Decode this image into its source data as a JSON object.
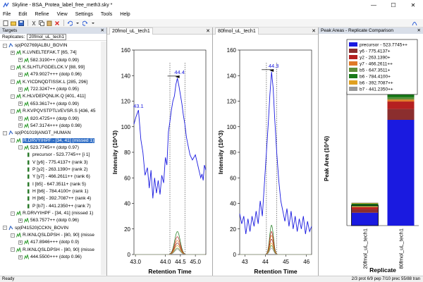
{
  "window": {
    "title": "Skyline - BSA_Protea_label_free_meth3.sky *",
    "minimize": "—",
    "maximize": "☐",
    "close": "✕"
  },
  "menu": [
    "File",
    "Edit",
    "Refine",
    "View",
    "Settings",
    "Tools",
    "Help"
  ],
  "targets": {
    "title": "Targets",
    "replicates_label": "Replicates:",
    "replicate_value": "20fmol_uL_tech1",
    "tree": [
      {
        "level": 0,
        "text": "sp|P02769|ALBU_BOVIN",
        "exp": "-",
        "kind": "protein"
      },
      {
        "level": 1,
        "text": "K.LVNELTEFAK.T [65, 74]",
        "exp": "+",
        "kind": "peptide"
      },
      {
        "level": 2,
        "text": "582.3190++ (dotp 0.99)",
        "exp": "+",
        "kind": "precursor"
      },
      {
        "level": 1,
        "text": "K.SLHTLFGDELCK.V [88, 99]",
        "exp": "-",
        "kind": "peptide"
      },
      {
        "level": 2,
        "text": "479.9027+++ (dotp 0.96)",
        "exp": "+",
        "kind": "precursor"
      },
      {
        "level": 1,
        "text": "K.YICDNQDTISSK.L [285, 296]",
        "exp": "-",
        "kind": "peptide"
      },
      {
        "level": 2,
        "text": "722.3247++ (dotp 0.95)",
        "exp": "+",
        "kind": "precursor"
      },
      {
        "level": 1,
        "text": "K.HLVDEPQNLIK.Q [401, 411]",
        "exp": "-",
        "kind": "peptide"
      },
      {
        "level": 2,
        "text": "653.3617++ (dotp 0.99)",
        "exp": "+",
        "kind": "precursor"
      },
      {
        "level": 1,
        "text": "R.KVPQVSTPTLVEVSR.S [436, 45",
        "exp": "-",
        "kind": "peptide"
      },
      {
        "level": 2,
        "text": "820.4725++ (dotp 0.99)",
        "exp": "+",
        "kind": "precursor"
      },
      {
        "level": 2,
        "text": "547.3174+++ (dotp 0.98)",
        "exp": "+",
        "kind": "precursor"
      },
      {
        "level": 0,
        "text": "sp|P01019|ANGT_HUMAN",
        "exp": "-",
        "kind": "protein"
      },
      {
        "level": 1,
        "text": "R.DRVYIHPF - [34, 41] (missed 1)",
        "exp": "-",
        "kind": "peptide",
        "selected": true
      },
      {
        "level": 2,
        "text": "523.7745++ (dotp 0.97)",
        "exp": "-",
        "kind": "precursor"
      },
      {
        "level": 3,
        "text": "precursor - 523.7745++ [i 1]",
        "exp": "",
        "kind": "transition"
      },
      {
        "level": 3,
        "text": "V [y6] - 775.4137+ (rank 3)",
        "exp": "",
        "kind": "transition"
      },
      {
        "level": 3,
        "text": "P [y2] - 263.1390+ (rank 2)",
        "exp": "",
        "kind": "transition"
      },
      {
        "level": 3,
        "text": "Y [y7] - 466.2611++ (rank 6)",
        "exp": "",
        "kind": "transition"
      },
      {
        "level": 3,
        "text": "I [b5] - 647.3511+ (rank 5)",
        "exp": "",
        "kind": "transition"
      },
      {
        "level": 3,
        "text": "H [b6] - 784.4100+ (rank 1)",
        "exp": "",
        "kind": "transition"
      },
      {
        "level": 3,
        "text": "H [b6] - 392.7087++ (rank 4)",
        "exp": "",
        "kind": "transition"
      },
      {
        "level": 3,
        "text": "P [b7] - 441.2350++ (rank 7)",
        "exp": "",
        "kind": "transition"
      },
      {
        "level": 1,
        "text": "R.DRVYIHPF - [34, 41] (missed 1)",
        "exp": "-",
        "kind": "peptide"
      },
      {
        "level": 2,
        "text": "563.7577++ (dotp 0.96)",
        "exp": "+",
        "kind": "precursor"
      },
      {
        "level": 0,
        "text": "sp|P41520|CCKN_BOVIN",
        "exp": "-",
        "kind": "protein"
      },
      {
        "level": 1,
        "text": "R.IKNLQSLDPSH - [80, 90] (misse",
        "exp": "-",
        "kind": "peptide"
      },
      {
        "level": 2,
        "text": "417.8946+++ (dotp 0.9)",
        "exp": "+",
        "kind": "precursor"
      },
      {
        "level": 1,
        "text": "R.IKNLQSLDPSH - [80, 90] (misse",
        "exp": "-",
        "kind": "peptide"
      },
      {
        "level": 2,
        "text": "444.5500+++ (dotp 0.96)",
        "exp": "+",
        "kind": "precursor"
      }
    ]
  },
  "chrom1": {
    "tab": "20fmol_uL_tech1",
    "ylabel": "Intensity (10^3)",
    "xlabel": "Retention Time",
    "yticks": [
      "160",
      "140",
      "120",
      "100",
      "80",
      "60",
      "40",
      "20",
      "0"
    ],
    "xticks": [
      "43.0",
      "44.0",
      "44.5",
      "45.0"
    ],
    "peak_label": "44.4",
    "side_label": "43.1"
  },
  "chrom2": {
    "tab": "80fmol_uL_tech1",
    "ylabel": "Intensity (10^3)",
    "xlabel": "Retention Time",
    "yticks": [
      "160",
      "140",
      "120",
      "100",
      "80",
      "60",
      "40",
      "20",
      "0"
    ],
    "xticks": [
      "43",
      "44",
      "45",
      "46"
    ],
    "peak_label": "44.3"
  },
  "peak_areas": {
    "title": "Peak Areas - Replicate Comparison"
  },
  "chart_data": {
    "type": "bar",
    "categories": [
      "20fmol_uL_tech1",
      "80fmol_uL_tech1"
    ],
    "xlabel": "Replicate",
    "ylabel": "Peak Area (10^6)",
    "ylim": [
      0,
      13
    ],
    "series": [
      {
        "name": "precursor - 523.7745++",
        "color": "#1a1ae0",
        "values": [
          0.95,
          7.8
        ]
      },
      {
        "name": "y6 - 775.4137+",
        "color": "#8b2e2e",
        "values": [
          0.25,
          0.8
        ]
      },
      {
        "name": "y2 - 263.1390+",
        "color": "#b52020",
        "values": [
          0.15,
          0.55
        ]
      },
      {
        "name": "y7 - 466.2611++",
        "color": "#e07a28",
        "values": [
          0.05,
          0.15
        ]
      },
      {
        "name": "b5 - 647.3511+",
        "color": "#5f8f3a",
        "values": [
          0.05,
          0.15
        ]
      },
      {
        "name": "b6 - 784.4100+",
        "color": "#1a7a1a",
        "values": [
          0.18,
          1.5
        ]
      },
      {
        "name": "b6 - 392.7087++",
        "color": "#e0a020",
        "values": [
          0.04,
          0.1
        ]
      },
      {
        "name": "b7 - 441.2350++",
        "color": "#9a9a9a",
        "values": [
          0.03,
          0.08
        ]
      }
    ]
  },
  "status": {
    "left": "Ready",
    "right": "2/3 prot  6/9 pep  7/10 prec  55/88 tran"
  }
}
